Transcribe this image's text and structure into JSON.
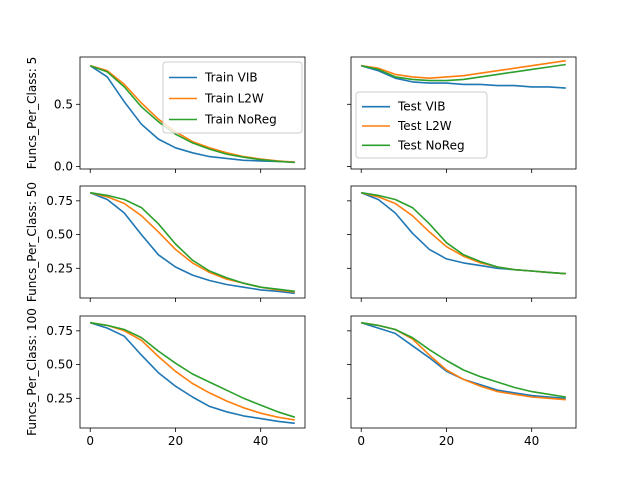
{
  "chart_data": {
    "type": "line",
    "layout": "3x2 grid, shared x across columns, shared y across rows",
    "xlim": [
      -2.4,
      50.4
    ],
    "x_ticks": [
      0,
      20,
      40
    ],
    "colors": {
      "VIB": "#1f77b4",
      "L2W": "#ff7f0e",
      "NoReg": "#2ca02c"
    },
    "row_labels": [
      "Funcs_Per_Class: 5",
      "Funcs_Per_Class: 50",
      "Funcs_Per_Class: 100"
    ],
    "rows": [
      {
        "ylim": [
          -0.02,
          0.88
        ],
        "y_ticks": [
          0.0,
          0.5
        ],
        "y_tick_labels": [
          "0.0",
          "0.5"
        ]
      },
      {
        "ylim": [
          0.03,
          0.86
        ],
        "y_ticks": [
          0.25,
          0.5,
          0.75
        ],
        "y_tick_labels": [
          "0.25",
          "0.50",
          "0.75"
        ]
      },
      {
        "ylim": [
          0.03,
          0.86
        ],
        "y_ticks": [
          0.25,
          0.5,
          0.75
        ],
        "y_tick_labels": [
          "0.25",
          "0.50",
          "0.75"
        ]
      }
    ],
    "legends": [
      {
        "panel": "r0c0",
        "entries": [
          "Train VIB",
          "Train L2W",
          "Train NoReg"
        ],
        "location": "top-right"
      },
      {
        "panel": "r0c1",
        "entries": [
          "Test VIB",
          "Test L2W",
          "Test NoReg"
        ],
        "location": "left"
      }
    ],
    "x": [
      0,
      4,
      8,
      12,
      16,
      20,
      24,
      28,
      32,
      36,
      40,
      44,
      48
    ],
    "panels": [
      {
        "id": "r0c0",
        "row": 0,
        "col": 0,
        "series": [
          {
            "name": "Train VIB",
            "key": "VIB",
            "values": [
              0.81,
              0.72,
              0.52,
              0.34,
              0.22,
              0.15,
              0.11,
              0.08,
              0.065,
              0.05,
              0.045,
              0.04,
              0.035
            ]
          },
          {
            "name": "Train L2W",
            "key": "L2W",
            "values": [
              0.81,
              0.77,
              0.66,
              0.51,
              0.38,
              0.28,
              0.2,
              0.15,
              0.11,
              0.08,
              0.06,
              0.045,
              0.035
            ]
          },
          {
            "name": "Train NoReg",
            "key": "NoReg",
            "values": [
              0.81,
              0.76,
              0.64,
              0.48,
              0.36,
              0.26,
              0.19,
              0.14,
              0.1,
              0.075,
              0.055,
              0.042,
              0.032
            ]
          }
        ]
      },
      {
        "id": "r0c1",
        "row": 0,
        "col": 1,
        "series": [
          {
            "name": "Test VIB",
            "key": "VIB",
            "values": [
              0.81,
              0.77,
              0.71,
              0.68,
              0.67,
              0.67,
              0.66,
              0.66,
              0.65,
              0.65,
              0.64,
              0.64,
              0.63
            ]
          },
          {
            "name": "Test L2W",
            "key": "L2W",
            "values": [
              0.81,
              0.79,
              0.74,
              0.72,
              0.71,
              0.72,
              0.73,
              0.75,
              0.77,
              0.79,
              0.81,
              0.83,
              0.85
            ]
          },
          {
            "name": "Test NoReg",
            "key": "NoReg",
            "values": [
              0.81,
              0.78,
              0.72,
              0.7,
              0.69,
              0.69,
              0.7,
              0.72,
              0.74,
              0.76,
              0.78,
              0.8,
              0.82
            ]
          }
        ]
      },
      {
        "id": "r1c0",
        "row": 1,
        "col": 0,
        "series": [
          {
            "name": "VIB",
            "key": "VIB",
            "values": [
              0.81,
              0.76,
              0.66,
              0.5,
              0.35,
              0.26,
              0.2,
              0.16,
              0.13,
              0.11,
              0.09,
              0.08,
              0.065
            ]
          },
          {
            "name": "L2W",
            "key": "L2W",
            "values": [
              0.81,
              0.78,
              0.73,
              0.64,
              0.52,
              0.39,
              0.29,
              0.22,
              0.17,
              0.14,
              0.11,
              0.09,
              0.075
            ]
          },
          {
            "name": "NoReg",
            "key": "NoReg",
            "values": [
              0.81,
              0.79,
              0.76,
              0.7,
              0.58,
              0.43,
              0.31,
              0.23,
              0.18,
              0.14,
              0.11,
              0.095,
              0.08
            ]
          }
        ]
      },
      {
        "id": "r1c1",
        "row": 1,
        "col": 1,
        "series": [
          {
            "name": "VIB",
            "key": "VIB",
            "values": [
              0.81,
              0.76,
              0.66,
              0.51,
              0.39,
              0.32,
              0.29,
              0.27,
              0.25,
              0.24,
              0.23,
              0.22,
              0.21
            ]
          },
          {
            "name": "L2W",
            "key": "L2W",
            "values": [
              0.81,
              0.78,
              0.73,
              0.64,
              0.52,
              0.41,
              0.34,
              0.29,
              0.26,
              0.24,
              0.23,
              0.22,
              0.21
            ]
          },
          {
            "name": "NoReg",
            "key": "NoReg",
            "values": [
              0.81,
              0.79,
              0.76,
              0.7,
              0.58,
              0.44,
              0.35,
              0.3,
              0.26,
              0.24,
              0.23,
              0.22,
              0.21
            ]
          }
        ]
      },
      {
        "id": "r2c0",
        "row": 2,
        "col": 0,
        "series": [
          {
            "name": "VIB",
            "key": "VIB",
            "values": [
              0.81,
              0.77,
              0.71,
              0.57,
              0.44,
              0.34,
              0.26,
              0.19,
              0.15,
              0.12,
              0.1,
              0.08,
              0.065
            ]
          },
          {
            "name": "L2W",
            "key": "L2W",
            "values": [
              0.81,
              0.79,
              0.75,
              0.68,
              0.56,
              0.45,
              0.36,
              0.29,
              0.23,
              0.18,
              0.14,
              0.11,
              0.09
            ]
          },
          {
            "name": "NoReg",
            "key": "NoReg",
            "values": [
              0.81,
              0.79,
              0.76,
              0.7,
              0.6,
              0.51,
              0.43,
              0.37,
              0.31,
              0.25,
              0.2,
              0.15,
              0.11
            ]
          }
        ]
      },
      {
        "id": "r2c1",
        "row": 2,
        "col": 1,
        "series": [
          {
            "name": "VIB",
            "key": "VIB",
            "values": [
              0.81,
              0.77,
              0.73,
              0.64,
              0.55,
              0.45,
              0.39,
              0.35,
              0.31,
              0.29,
              0.27,
              0.26,
              0.25
            ]
          },
          {
            "name": "L2W",
            "key": "L2W",
            "values": [
              0.81,
              0.79,
              0.76,
              0.69,
              0.57,
              0.46,
              0.39,
              0.34,
              0.3,
              0.28,
              0.26,
              0.25,
              0.24
            ]
          },
          {
            "name": "NoReg",
            "key": "NoReg",
            "values": [
              0.81,
              0.79,
              0.76,
              0.7,
              0.61,
              0.53,
              0.46,
              0.41,
              0.37,
              0.33,
              0.3,
              0.28,
              0.26
            ]
          }
        ]
      }
    ]
  }
}
